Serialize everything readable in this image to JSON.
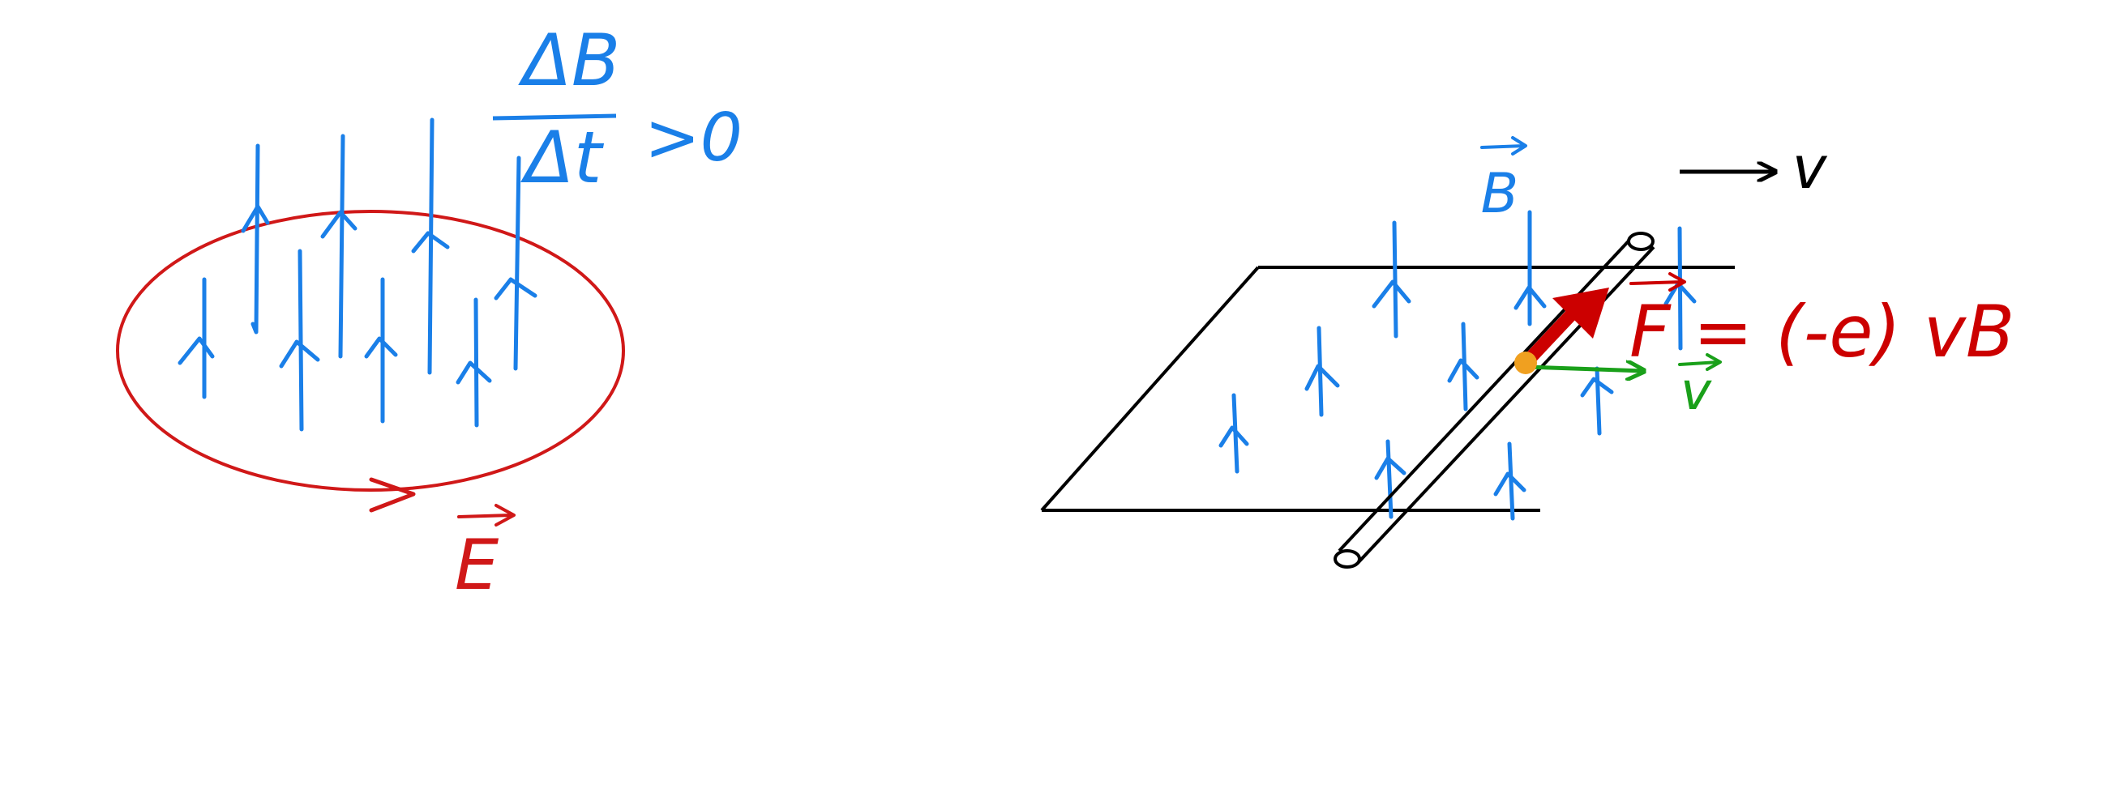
{
  "colors": {
    "field": "#1a7fe8",
    "loop": "#d01818",
    "force": "#cc0000",
    "velocity": "#1aa01a",
    "ink": "#000000",
    "charge": "#f0a020"
  },
  "left_diagram": {
    "rate_numerator": "ΔB",
    "rate_denominator": "Δt",
    "rate_relation": ">0",
    "loop_field_label": "E"
  },
  "right_diagram": {
    "field_label": "B",
    "motion_label": "v",
    "velocity_label": "v",
    "force_formula": "F = (-e) vB"
  }
}
